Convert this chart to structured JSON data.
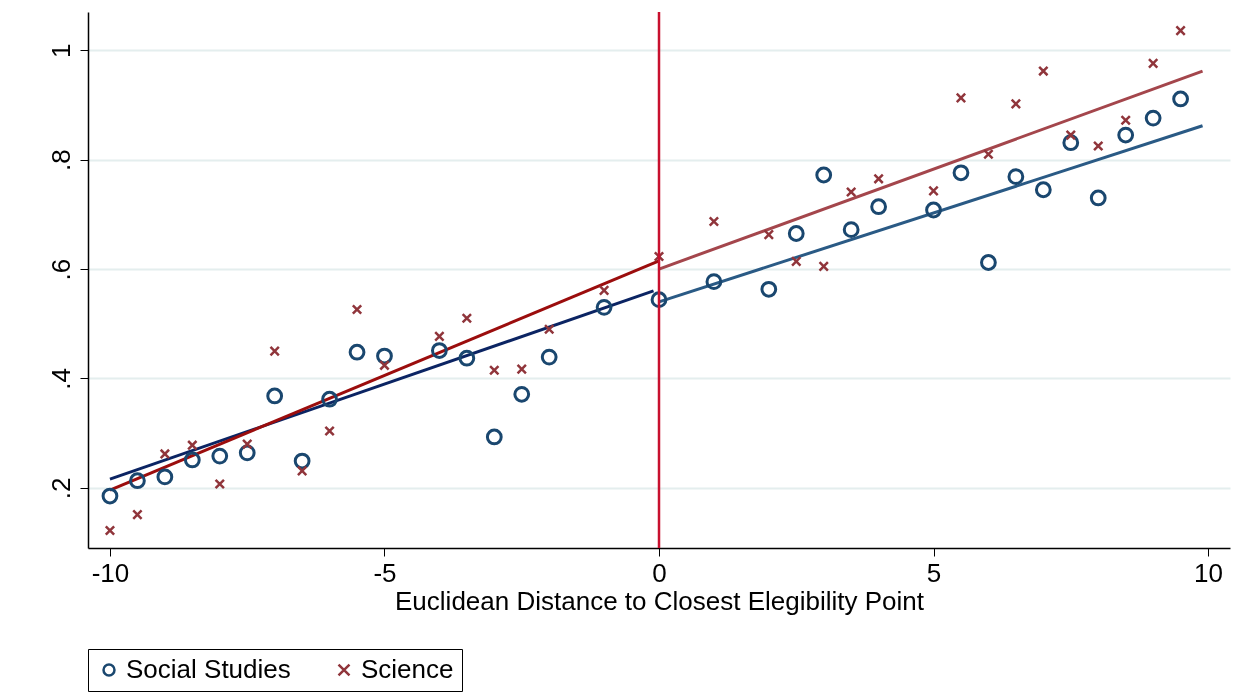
{
  "chart_data": {
    "type": "scatter",
    "xlabel": "Euclidean Distance to Closest Elegibility Point",
    "xlim": [
      -10.4,
      10.4
    ],
    "ylim": [
      0.09,
      1.07
    ],
    "xticks": [
      -10,
      -5,
      0,
      5,
      10
    ],
    "yticks": [
      {
        "value": 0.2,
        "label": ".2"
      },
      {
        "value": 0.4,
        "label": ".4"
      },
      {
        "value": 0.6,
        "label": ".6"
      },
      {
        "value": 0.8,
        "label": ".8"
      },
      1
    ],
    "grid": "y",
    "legend": "bottom",
    "ref_lines": [
      {
        "axis": "x",
        "value": 0,
        "color": "#c8102e"
      }
    ],
    "series": [
      {
        "name": "Social Studies",
        "type": "scatter",
        "marker": "circle",
        "color": "#1a476f",
        "x": [
          -10,
          -9.5,
          -9,
          -8.5,
          -8,
          -7.5,
          -7,
          -6.5,
          -6,
          -5.5,
          -5,
          -4,
          -3.5,
          -3,
          -2.5,
          -2,
          -1,
          0,
          1,
          2,
          2.5,
          3,
          3.5,
          4,
          5,
          5.5,
          6,
          6.5,
          7,
          7.5,
          8,
          8.5,
          9,
          9.5
        ],
        "values": [
          0.185,
          0.213,
          0.22,
          0.251,
          0.258,
          0.264,
          0.368,
          0.249,
          0.362,
          0.448,
          0.441,
          0.451,
          0.437,
          0.293,
          0.371,
          0.439,
          0.53,
          0.544,
          0.577,
          0.563,
          0.665,
          0.772,
          0.672,
          0.714,
          0.708,
          0.776,
          0.612,
          0.769,
          0.745,
          0.831,
          0.73,
          0.845,
          0.876,
          0.911
        ]
      },
      {
        "name": "Science",
        "type": "scatter",
        "marker": "cross",
        "color": "#90353b",
        "x": [
          -10,
          -9.5,
          -9,
          -8.5,
          -8,
          -7.5,
          -7,
          -6.5,
          -6,
          -5.5,
          -5,
          -4,
          -3.5,
          -3,
          -2.5,
          -2,
          -1,
          0,
          1,
          2,
          2.5,
          3,
          3.5,
          4,
          5,
          5.5,
          6,
          6.5,
          7,
          7.5,
          8,
          8.5,
          9,
          9.5
        ],
        "values": [
          0.122,
          0.151,
          0.262,
          0.278,
          0.207,
          0.28,
          0.45,
          0.231,
          0.304,
          0.526,
          0.424,
          0.477,
          0.51,
          0.415,
          0.417,
          0.49,
          0.561,
          0.623,
          0.687,
          0.663,
          0.614,
          0.605,
          0.741,
          0.765,
          0.743,
          0.913,
          0.81,
          0.902,
          0.962,
          0.845,
          0.825,
          0.872,
          0.976,
          1.036
        ]
      },
      {
        "type": "line",
        "marker": "none",
        "color": "#0b2463",
        "x": [
          -10,
          -0.1
        ],
        "values": [
          0.216,
          0.56
        ]
      },
      {
        "type": "line",
        "marker": "none",
        "color": "#9b0d0d",
        "x": [
          -10,
          0
        ],
        "values": [
          0.196,
          0.615
        ]
      },
      {
        "type": "line",
        "marker": "none",
        "color": "#2a5a85",
        "x": [
          0,
          9.9
        ],
        "values": [
          0.54,
          0.862
        ]
      },
      {
        "type": "line",
        "marker": "none",
        "color": "#a4464c",
        "x": [
          0,
          9.9
        ],
        "values": [
          0.6,
          0.962
        ]
      }
    ]
  }
}
